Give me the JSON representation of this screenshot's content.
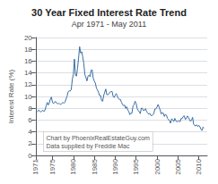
{
  "chart_data": {
    "type": "line",
    "title": "30 Year Fixed Interest Rate Trend",
    "subtitle": "Apr 1971 - May 2011",
    "ylabel": "Interest Rate (%)",
    "annotations": [
      "Chart by PhoenixRealEstateGuy.com",
      "Data supplied by Freddie Mac"
    ],
    "color": "#3a6ea5",
    "grid": true,
    "xlim": [
      1971,
      2012
    ],
    "xticks": [
      1971,
      1975,
      1980,
      1985,
      1990,
      1995,
      2000,
      2005,
      2010
    ],
    "ylim": [
      0,
      20
    ],
    "yticks": [
      0,
      2,
      4,
      6,
      8,
      10,
      12,
      14,
      16,
      18,
      20
    ],
    "x": [
      1971.25,
      1971.5,
      1971.75,
      1972.0,
      1972.25,
      1972.5,
      1972.75,
      1973.0,
      1973.25,
      1973.5,
      1973.75,
      1974.0,
      1974.25,
      1974.5,
      1974.75,
      1975.0,
      1975.25,
      1975.5,
      1975.75,
      1976.0,
      1976.25,
      1976.5,
      1976.75,
      1977.0,
      1977.25,
      1977.5,
      1977.75,
      1978.0,
      1978.25,
      1978.5,
      1978.75,
      1979.0,
      1979.25,
      1979.5,
      1979.75,
      1980.0,
      1980.25,
      1980.5,
      1980.75,
      1981.0,
      1981.25,
      1981.5,
      1981.75,
      1982.0,
      1982.25,
      1982.5,
      1982.75,
      1983.0,
      1983.25,
      1983.5,
      1983.75,
      1984.0,
      1984.25,
      1984.5,
      1984.75,
      1985.0,
      1985.25,
      1985.5,
      1985.75,
      1986.0,
      1986.25,
      1986.5,
      1986.75,
      1987.0,
      1987.25,
      1987.5,
      1987.75,
      1988.0,
      1988.25,
      1988.5,
      1988.75,
      1989.0,
      1989.25,
      1989.5,
      1989.75,
      1990.0,
      1990.25,
      1990.5,
      1990.75,
      1991.0,
      1991.25,
      1991.5,
      1991.75,
      1992.0,
      1992.25,
      1992.5,
      1992.75,
      1993.0,
      1993.25,
      1993.5,
      1993.75,
      1994.0,
      1994.25,
      1994.5,
      1994.75,
      1995.0,
      1995.25,
      1995.5,
      1995.75,
      1996.0,
      1996.25,
      1996.5,
      1996.75,
      1997.0,
      1997.25,
      1997.5,
      1997.75,
      1998.0,
      1998.25,
      1998.5,
      1998.75,
      1999.0,
      1999.25,
      1999.5,
      1999.75,
      2000.0,
      2000.25,
      2000.5,
      2000.75,
      2001.0,
      2001.25,
      2001.5,
      2001.75,
      2002.0,
      2002.25,
      2002.5,
      2002.75,
      2003.0,
      2003.25,
      2003.5,
      2003.75,
      2004.0,
      2004.25,
      2004.5,
      2004.75,
      2005.0,
      2005.25,
      2005.5,
      2005.75,
      2006.0,
      2006.25,
      2006.5,
      2006.75,
      2007.0,
      2007.25,
      2007.5,
      2007.75,
      2008.0,
      2008.25,
      2008.5,
      2008.75,
      2009.0,
      2009.25,
      2009.5,
      2009.75,
      2010.0,
      2010.25,
      2010.5,
      2010.75,
      2011.0,
      2011.25
    ],
    "values": [
      7.33,
      7.53,
      7.7,
      7.44,
      7.38,
      7.56,
      7.65,
      7.44,
      7.73,
      8.4,
      8.99,
      8.56,
      8.92,
      9.55,
      9.9,
      9.05,
      8.78,
      9.05,
      9.15,
      8.87,
      8.74,
      8.87,
      8.72,
      8.65,
      8.85,
      8.98,
      8.88,
      9.02,
      9.56,
      10.06,
      10.78,
      10.95,
      10.92,
      11.2,
      12.9,
      13.74,
      16.35,
      13.64,
      13.45,
      14.8,
      16.52,
      18.45,
      17.35,
      17.6,
      16.7,
      15.55,
      13.72,
      13.22,
      12.63,
      13.45,
      13.61,
      13.35,
      14.47,
      14.51,
      13.12,
      12.6,
      12.29,
      11.47,
      11.1,
      10.73,
      10.17,
      10.17,
      9.31,
      9.18,
      10.15,
      10.73,
      11.26,
      10.32,
      10.27,
      10.46,
      10.74,
      10.82,
      10.86,
      10.04,
      9.82,
      10.2,
      10.49,
      10.04,
      9.67,
      9.5,
      9.51,
      9.01,
      8.64,
      8.43,
      8.55,
      7.98,
      8.25,
      7.72,
      7.46,
      6.92,
      7.17,
      7.15,
      8.38,
      8.6,
      9.2,
      8.83,
      7.96,
      7.61,
      7.41,
      7.09,
      8.02,
      8.0,
      7.62,
      7.65,
      7.93,
      7.46,
      7.22,
      6.99,
      7.14,
      6.81,
      6.75,
      6.88,
      7.15,
      7.88,
      7.91,
      8.21,
      8.64,
      8.15,
      7.72,
      7.03,
      7.24,
      7.18,
      6.61,
      6.99,
      6.8,
      6.29,
      6.09,
      5.84,
      5.47,
      6.23,
      6.0,
      5.73,
      6.29,
      5.84,
      5.73,
      5.77,
      5.86,
      5.7,
      6.26,
      6.25,
      6.6,
      6.73,
      6.14,
      6.22,
      6.69,
      6.47,
      6.1,
      5.76,
      5.97,
      6.46,
      5.29,
      5.05,
      5.01,
      5.19,
      4.88,
      5.09,
      4.86,
      4.45,
      4.23,
      4.81,
      4.64
    ]
  }
}
